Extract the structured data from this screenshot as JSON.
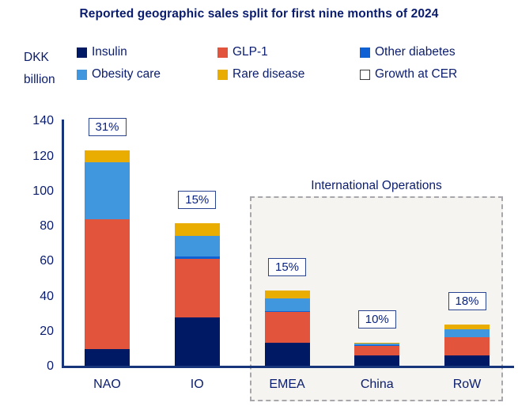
{
  "title": "Reported geographic sales split for first nine months of 2024",
  "y_axis": {
    "unit_lines": [
      "DKK",
      "billion"
    ],
    "ticks": [
      0,
      20,
      40,
      60,
      80,
      100,
      120,
      140
    ]
  },
  "legend": [
    {
      "label": "Insulin",
      "color": "#001965",
      "swatch": "fill"
    },
    {
      "label": "GLP-1",
      "color": "#E3543C",
      "swatch": "fill"
    },
    {
      "label": "Other diabetes",
      "color": "#1062D4",
      "swatch": "fill"
    },
    {
      "label": "Obesity care",
      "color": "#4197DE",
      "swatch": "fill"
    },
    {
      "label": "Rare disease",
      "color": "#E8AD00",
      "swatch": "fill"
    },
    {
      "label": "Growth at CER",
      "color": "#FFFFFF",
      "swatch": "outline"
    }
  ],
  "annotation_group": {
    "label": "International Operations",
    "categories": [
      "EMEA",
      "China",
      "RoW"
    ]
  },
  "chart_data": {
    "type": "bar",
    "stacked": true,
    "title": "Reported geographic sales split for first nine months of 2024",
    "ylabel": "DKK billion",
    "ylim": [
      0,
      140
    ],
    "grid": false,
    "legend_position": "top",
    "categories": [
      "NAO",
      "IO",
      "EMEA",
      "China",
      "RoW"
    ],
    "series": [
      {
        "name": "Insulin",
        "color": "#001965",
        "values": [
          10,
          28,
          13.5,
          6.5,
          6.5
        ]
      },
      {
        "name": "GLP-1",
        "color": "#E3543C",
        "values": [
          74,
          33.5,
          17.7,
          5.4,
          10.2
        ]
      },
      {
        "name": "Other diabetes",
        "color": "#1062D4",
        "values": [
          0,
          1.5,
          0.5,
          0.4,
          0
        ]
      },
      {
        "name": "Obesity care",
        "color": "#4197DE",
        "values": [
          32.8,
          11.7,
          7.2,
          0.6,
          4.5
        ]
      },
      {
        "name": "Rare disease",
        "color": "#E8AD00",
        "values": [
          6.5,
          7.1,
          4.3,
          0.8,
          2.6
        ]
      }
    ],
    "totals_approx": [
      123.3,
      81.8,
      43.2,
      13.7,
      23.8
    ],
    "growth_at_cer": [
      "31%",
      "15%",
      "15%",
      "10%",
      "18%"
    ]
  },
  "colors": {
    "axis": "#16357A",
    "text": "#0A1C6E",
    "group_box_fill": "#F5F4F1",
    "group_box_border": "#A8A8AC",
    "growth_box_border": "#2A4390"
  }
}
